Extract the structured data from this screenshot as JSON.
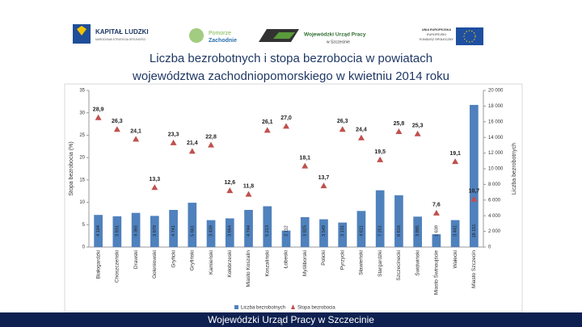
{
  "header": {
    "logos": [
      "KAPITAŁ LUDZKI",
      "NARODOWA STRATEGIA SPÓJNOŚCI",
      "Pomorze",
      "Zachodnie",
      "Wojewódzki Urząd Pracy",
      "w Szczecinie",
      "UNIA EUROPEJSKA",
      "EUROPEJSKI",
      "FUNDUSZ SPOŁECZNY"
    ]
  },
  "chart_data": {
    "type": "bar",
    "title": [
      "Liczba bezrobotnych i stopa bezrobocia w powiatach",
      "województwa zachodniopomorskiego w kwietniu 2014 roku"
    ],
    "categories": [
      "Białogardzki",
      "Choszczeński",
      "Drawski",
      "Goleniowski",
      "Gryficki",
      "Gryfiński",
      "Kamieński",
      "Kołobrzeski",
      "Miasto Koszalin",
      "Koszaliński",
      "Łobeski",
      "Myśliborski",
      "Policki",
      "Pyrzycki",
      "Sławieński",
      "Stargardzki",
      "Szczecinecki",
      "Świdwiński",
      "Miasto Świnoujście",
      "Wałecki",
      "Miasto Szczecin"
    ],
    "series": [
      {
        "name": "Liczba bezrobotnych",
        "type": "bar",
        "axis": "y2",
        "color": "#4f81bd",
        "values": [
          4104,
          3931,
          4365,
          3979,
          4741,
          5661,
          3439,
          3664,
          4744,
          5213,
          2112,
          3825,
          3549,
          3131,
          4611,
          7251,
          6616,
          3885,
          1639,
          3441,
          18151
        ],
        "value_labels": [
          "4 104",
          "3 931",
          "4 365",
          "3 979",
          "4 741",
          "5 661",
          "3 439",
          "3 664",
          "4 744",
          "5 213",
          "2 112",
          "3 825",
          "3 549",
          "3 131",
          "4 611",
          "7 251",
          "6 616",
          "3 885",
          "1 639",
          "3 441",
          "18 151"
        ]
      },
      {
        "name": "Stopa bezrobocia",
        "type": "scatter",
        "axis": "y",
        "color": "#c0504d",
        "values": [
          28.9,
          26.3,
          24.1,
          13.3,
          23.3,
          21.4,
          22.8,
          12.6,
          11.8,
          26.1,
          27.0,
          18.1,
          13.7,
          26.3,
          24.4,
          19.5,
          25.8,
          25.3,
          7.6,
          19.1,
          10.7
        ],
        "value_labels": [
          "28,9",
          "26,3",
          "24,1",
          "13,3",
          "23,3",
          "21,4",
          "22,8",
          "12,6",
          "11,8",
          "26,1",
          "27,0",
          "18,1",
          "13,7",
          "26,3",
          "24,4",
          "19,5",
          "25,8",
          "25,3",
          "7,6",
          "19,1",
          "10,7"
        ]
      }
    ],
    "ylabel": "Stopa bezrobocia (%)",
    "y2label": "Liczba bezrobotnych",
    "ylim": [
      0,
      35
    ],
    "yticks": [
      0,
      5,
      10,
      15,
      20,
      25,
      30,
      35
    ],
    "y2lim": [
      0,
      20000
    ],
    "y2ticks": [
      0,
      {
        "value": 2000,
        "label": "2 000"
      },
      {
        "value": 4000,
        "label": "4 000"
      },
      {
        "value": 6000,
        "label": "6 000"
      },
      {
        "value": 8000,
        "label": "8 000"
      },
      {
        "value": 10000,
        "label": "10 000"
      },
      {
        "value": 12000,
        "label": "12 000"
      },
      {
        "value": 14000,
        "label": "14 000"
      },
      {
        "value": 16000,
        "label": "16 000"
      },
      {
        "value": 18000,
        "label": "18 000"
      },
      {
        "value": 20000,
        "label": "20 000"
      }
    ],
    "legend": "bottom"
  },
  "footer": {
    "text": "Wojewódzki Urząd Pracy w Szczecinie"
  }
}
